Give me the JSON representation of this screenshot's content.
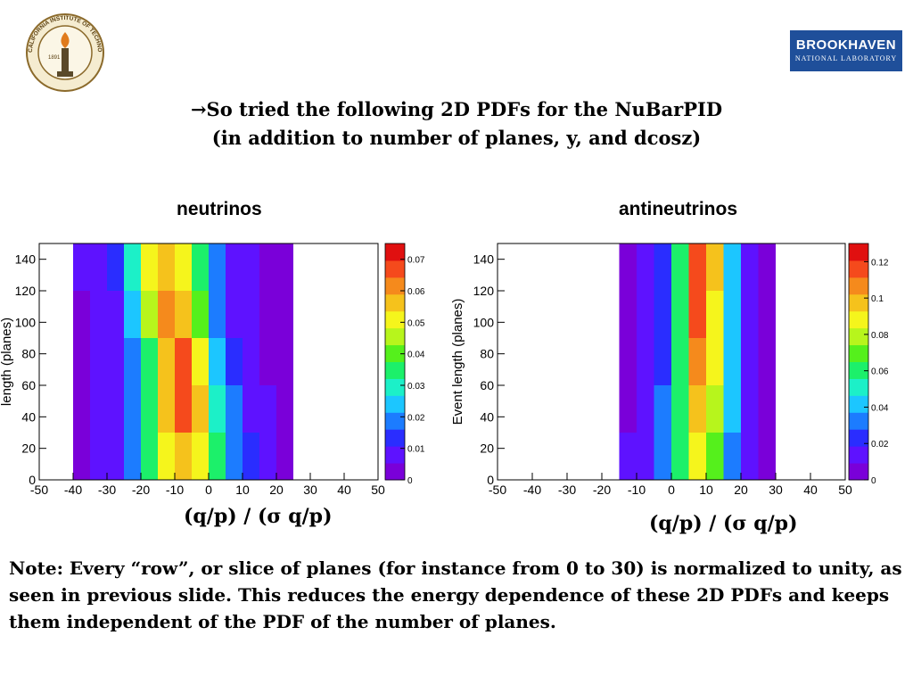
{
  "header": {
    "title_line1": "→So tried the following 2D PDFs for the NuBarPID",
    "title_line2": "(in addition to number of planes, y, and dcosz)"
  },
  "logos": {
    "left_seal_text": "CALIFORNIA INSTITUTE OF TECHNOLOGY",
    "left_seal_year": "1891",
    "right_logo_main": "BROOKHAVEN",
    "right_logo_sub": "NATIONAL LABORATORY"
  },
  "plots": [
    {
      "label": "neutrinos",
      "x_title": "(q/p) / (σ q/p)",
      "y_title": "length (planes)",
      "x_ticks": [
        "-50",
        "-40",
        "-30",
        "-20",
        "-10",
        "0",
        "10",
        "20",
        "30",
        "40",
        "50"
      ],
      "y_ticks": [
        "0",
        "20",
        "40",
        "60",
        "80",
        "100",
        "120",
        "140"
      ],
      "colorbar_ticks": [
        "0",
        "0.01",
        "0.02",
        "0.03",
        "0.04",
        "0.05",
        "0.06",
        "0.07"
      ],
      "colorbar_ticks_shown": [
        "0",
        "0.01",
        "0.02",
        "0.03",
        "0.04",
        "0.05",
        "0.06",
        "0.07"
      ]
    },
    {
      "label": "antineutrinos",
      "x_title": "(q/p) / (σ q/p)",
      "y_title": "Event length (planes)",
      "x_ticks": [
        "-50",
        "-40",
        "-30",
        "-20",
        "-10",
        "0",
        "10",
        "20",
        "30",
        "40",
        "50"
      ],
      "y_ticks": [
        "0",
        "20",
        "40",
        "60",
        "80",
        "100",
        "120",
        "140"
      ],
      "colorbar_ticks": [
        "0",
        "0.02",
        "0.04",
        "0.06",
        "0.08",
        "0.1",
        "0.12"
      ]
    }
  ],
  "chart_data": [
    {
      "type": "heatmap",
      "title": "neutrinos",
      "xlabel": "(q/p) / (σ q/p)",
      "ylabel": "length (planes)",
      "xlim": [
        -50,
        50
      ],
      "ylim": [
        0,
        150
      ],
      "zlim": [
        0,
        0.075
      ],
      "x_bins": [
        -37.5,
        -32.5,
        -27.5,
        -22.5,
        -17.5,
        -12.5,
        -7.5,
        -2.5,
        2.5,
        7.5,
        12.5,
        17.5,
        22.5
      ],
      "y_bins": [
        15,
        45,
        75,
        105,
        135
      ],
      "z_rows": [
        [
          0.002,
          0.004,
          0.008,
          0.02,
          0.035,
          0.05,
          0.06,
          0.05,
          0.035,
          0.02,
          0.01,
          0.004,
          0.002
        ],
        [
          0.002,
          0.003,
          0.006,
          0.018,
          0.035,
          0.055,
          0.072,
          0.055,
          0.03,
          0.015,
          0.006,
          0.003,
          0.001
        ],
        [
          0.002,
          0.003,
          0.005,
          0.015,
          0.035,
          0.06,
          0.07,
          0.05,
          0.025,
          0.01,
          0.004,
          0.002,
          0.001
        ],
        [
          0.002,
          0.004,
          0.008,
          0.025,
          0.045,
          0.065,
          0.06,
          0.04,
          0.02,
          0.008,
          0.004,
          0.002,
          0.001
        ],
        [
          0.003,
          0.005,
          0.012,
          0.03,
          0.05,
          0.055,
          0.05,
          0.035,
          0.018,
          0.008,
          0.004,
          0.002,
          0.001
        ]
      ]
    },
    {
      "type": "heatmap",
      "title": "antineutrinos",
      "xlabel": "(q/p) / (σ q/p)",
      "ylabel": "Event length (planes)",
      "xlim": [
        -50,
        50
      ],
      "ylim": [
        0,
        150
      ],
      "zlim": [
        0,
        0.13
      ],
      "x_bins": [
        -12.5,
        -7.5,
        -2.5,
        2.5,
        7.5,
        12.5,
        17.5,
        22.5,
        27.5
      ],
      "y_bins": [
        15,
        45,
        75,
        105,
        135
      ],
      "z_rows": [
        [
          0.005,
          0.01,
          0.03,
          0.06,
          0.09,
          0.07,
          0.03,
          0.008,
          0.002
        ],
        [
          0.004,
          0.008,
          0.025,
          0.06,
          0.1,
          0.08,
          0.035,
          0.01,
          0.003
        ],
        [
          0.003,
          0.007,
          0.02,
          0.055,
          0.11,
          0.085,
          0.035,
          0.01,
          0.003
        ],
        [
          0.003,
          0.006,
          0.02,
          0.06,
          0.12,
          0.09,
          0.04,
          0.01,
          0.003
        ],
        [
          0.003,
          0.006,
          0.02,
          0.06,
          0.125,
          0.095,
          0.04,
          0.01,
          0.003
        ]
      ]
    }
  ],
  "note": "Note: Every “row”, or slice of planes (for instance from 0 to 30) is normalized to unity, as seen in previous slide. This reduces the energy dependence of these 2D PDFs and keeps them independent of the PDF of the number of planes."
}
